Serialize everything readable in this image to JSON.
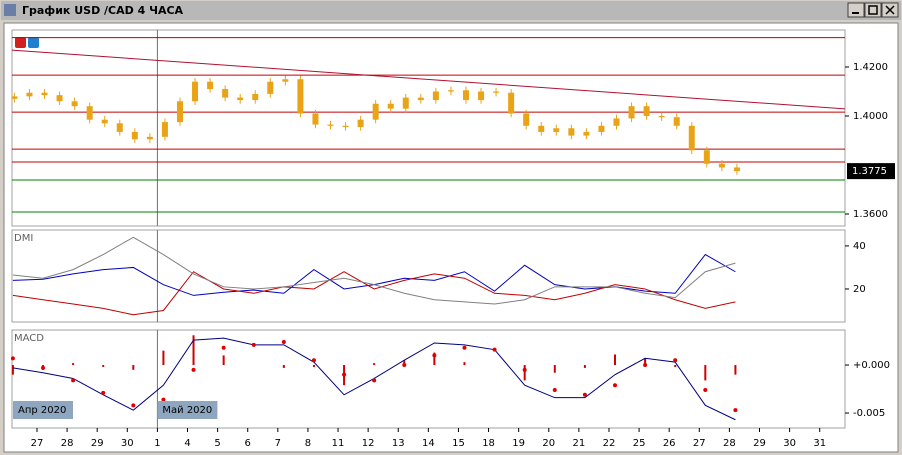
{
  "window": {
    "title": "График USD /CAD  4 ЧАСА"
  },
  "chart_data": [
    {
      "type": "candlestick",
      "xlim": [
        -0.83,
        26.84
      ],
      "ylim": [
        1.3551,
        1.4351
      ],
      "yticks": [
        {
          "value": 1.42,
          "label": "1.4200"
        },
        {
          "value": 1.4,
          "label": "1.4000"
        },
        {
          "value": 1.36,
          "label": "1.3600"
        }
      ],
      "color": "#e8a317",
      "x": [
        -0.75,
        -0.25,
        0.25,
        0.75,
        1.25,
        1.75,
        2.25,
        2.75,
        3.25,
        3.75,
        4.25,
        4.75,
        5.25,
        5.75,
        6.25,
        6.75,
        7.25,
        7.75,
        8.25,
        8.75,
        9.25,
        9.75,
        10.25,
        10.75,
        11.25,
        11.75,
        12.25,
        12.75,
        13.25,
        13.75,
        14.25,
        14.75,
        15.25,
        15.75,
        16.25,
        16.75,
        17.25,
        17.75,
        18.25,
        18.75,
        19.25,
        19.75,
        20.25,
        20.75,
        21.25,
        21.75,
        22.25,
        22.75,
        23.25
      ],
      "open": [
        1.407,
        1.408,
        1.4095,
        1.4085,
        1.406,
        1.404,
        1.3985,
        1.397,
        1.3935,
        1.3905,
        1.3915,
        1.3975,
        1.406,
        1.414,
        1.411,
        1.4075,
        1.4065,
        1.409,
        1.414,
        1.415,
        1.401,
        1.3965,
        1.396,
        1.3955,
        1.3985,
        1.405,
        1.403,
        1.4075,
        1.4065,
        1.41,
        1.4105,
        1.4065,
        1.41,
        1.4095,
        1.401,
        1.396,
        1.3935,
        1.395,
        1.392,
        1.3935,
        1.396,
        1.399,
        1.404,
        1.4,
        1.3995,
        1.396,
        1.386,
        1.3805,
        1.379
      ],
      "high": [
        1.4095,
        1.411,
        1.411,
        1.41,
        1.4075,
        1.4055,
        1.4,
        1.3985,
        1.395,
        1.393,
        1.399,
        1.4075,
        1.4155,
        1.4155,
        1.4125,
        1.409,
        1.4105,
        1.4155,
        1.4165,
        1.4165,
        1.4025,
        1.398,
        1.3975,
        1.4,
        1.4065,
        1.4065,
        1.409,
        1.409,
        1.4115,
        1.412,
        1.412,
        1.4115,
        1.4115,
        1.411,
        1.4025,
        1.3975,
        1.3965,
        1.3965,
        1.395,
        1.3975,
        1.4005,
        1.4055,
        1.4055,
        1.4015,
        1.401,
        1.3975,
        1.3875,
        1.382,
        1.3805
      ],
      "low": [
        1.4055,
        1.4065,
        1.407,
        1.4045,
        1.4025,
        1.397,
        1.3955,
        1.392,
        1.389,
        1.389,
        1.39,
        1.396,
        1.4045,
        1.4095,
        1.406,
        1.405,
        1.405,
        1.4075,
        1.4125,
        1.3995,
        1.395,
        1.3945,
        1.394,
        1.394,
        1.397,
        1.4015,
        1.4015,
        1.405,
        1.405,
        1.4085,
        1.405,
        1.405,
        1.408,
        1.3995,
        1.3945,
        1.392,
        1.392,
        1.3905,
        1.3905,
        1.392,
        1.3945,
        1.3975,
        1.3985,
        1.398,
        1.3945,
        1.3845,
        1.379,
        1.3775,
        1.376
      ],
      "close": [
        1.408,
        1.4095,
        1.4085,
        1.406,
        1.404,
        1.3985,
        1.397,
        1.3935,
        1.3905,
        1.3915,
        1.3975,
        1.406,
        1.414,
        1.411,
        1.4075,
        1.4065,
        1.409,
        1.414,
        1.415,
        1.401,
        1.3965,
        1.396,
        1.3955,
        1.3985,
        1.405,
        1.403,
        1.4075,
        1.4065,
        1.41,
        1.4105,
        1.4065,
        1.41,
        1.4095,
        1.401,
        1.396,
        1.3935,
        1.395,
        1.392,
        1.3935,
        1.396,
        1.399,
        1.404,
        1.4,
        1.3995,
        1.396,
        1.386,
        1.3805,
        1.379,
        1.3775
      ],
      "hlines": [
        {
          "value": 1.432,
          "color": "#c00000"
        },
        {
          "value": 1.4167,
          "color": "#c00000"
        },
        {
          "value": 1.4016,
          "color": "#c00000"
        },
        {
          "value": 1.3865,
          "color": "#c00000"
        },
        {
          "value": 1.3812,
          "color": "#c00000"
        },
        {
          "value": 1.3739,
          "color": "#008000"
        },
        {
          "value": 1.3608,
          "color": "#008000"
        }
      ],
      "trendline": {
        "x": [
          -0.83,
          26.84
        ],
        "values": [
          1.4269,
          1.4029
        ],
        "color": "#b01030"
      },
      "last_price": {
        "value": 1.3775,
        "label": "1.3775"
      }
    },
    {
      "type": "line",
      "title": "DMI",
      "xlim": [
        -0.83,
        26.84
      ],
      "ylim": [
        4.65,
        47.4
      ],
      "yticks": [
        40,
        20
      ],
      "x": [
        -0.8,
        0.2,
        1.2,
        2.2,
        3.2,
        4.2,
        5.2,
        6.2,
        7.2,
        8.2,
        9.2,
        10.2,
        11.2,
        12.2,
        13.2,
        14.2,
        15.2,
        16.2,
        17.2,
        18.2,
        19.2,
        20.2,
        21.2,
        22.2,
        23.2
      ],
      "series": [
        {
          "color": "#0000c0",
          "kind": "line",
          "values": [
            24,
            24.5,
            27,
            29,
            30,
            22,
            17,
            18.5,
            19.5,
            18,
            29,
            20,
            22,
            25,
            24,
            28,
            19,
            31,
            22,
            20,
            21,
            19,
            18,
            36,
            28
          ]
        },
        {
          "color": "#c00000",
          "kind": "line",
          "values": [
            17,
            15,
            13,
            11,
            8,
            10,
            28,
            20,
            18,
            21,
            20,
            28,
            20,
            24,
            27,
            25,
            18,
            17,
            15,
            18,
            22,
            20,
            15,
            11,
            14
          ]
        },
        {
          "color": "#808080",
          "kind": "line",
          "values": [
            26.5,
            25,
            29,
            36,
            44,
            36,
            27,
            21,
            20,
            21,
            23,
            25,
            22,
            18,
            15,
            14,
            13,
            15,
            21,
            21,
            21,
            18,
            16,
            28,
            32
          ]
        }
      ]
    },
    {
      "type": "line",
      "title": "MACD",
      "xlim": [
        -0.83,
        26.84
      ],
      "ylim": [
        -0.00656,
        0.00365
      ],
      "yticks": [
        {
          "value": 0,
          "label": "+0.000"
        },
        {
          "value": -0.005,
          "label": "-0.005"
        }
      ],
      "x": [
        -0.8,
        0.2,
        1.2,
        2.2,
        3.2,
        4.2,
        5.2,
        6.2,
        7.2,
        8.2,
        9.2,
        10.2,
        11.2,
        12.2,
        13.2,
        14.2,
        15.2,
        16.2,
        17.2,
        18.2,
        19.2,
        20.2,
        21.2,
        22.2,
        23.2
      ],
      "series": [
        {
          "color": "#d00000",
          "kind": "bar",
          "values": [
            -0.001,
            -0.0005,
            0.0002,
            -0.0002,
            -0.0005,
            0.0015,
            0.0031,
            0.001,
            0.0,
            -0.0003,
            -0.0002,
            -0.0021,
            0.0002,
            0.0005,
            0.0013,
            0.0003,
            0.0,
            -0.0016,
            -0.0008,
            -0.0003,
            0.0011,
            0.0007,
            -0.0002,
            -0.0016,
            -0.001
          ]
        },
        {
          "color": "#000080",
          "kind": "line",
          "values": [
            -0.0003,
            -0.0008,
            -0.0014,
            -0.0031,
            -0.0047,
            -0.0021,
            0.0026,
            0.0028,
            0.0021,
            0.0021,
            0.0003,
            -0.0031,
            -0.0014,
            0.0005,
            0.0023,
            0.0021,
            0.0016,
            -0.0021,
            -0.0034,
            -0.0034,
            -0.001,
            0.0007,
            0.0003,
            -0.0042,
            -0.0057
          ]
        },
        {
          "color": "#e00000",
          "kind": "dots",
          "values": [
            0.0007,
            -0.0003,
            -0.0016,
            -0.0029,
            -0.0042,
            -0.0036,
            -0.0005,
            0.0018,
            0.0021,
            0.0024,
            0.0005,
            -0.001,
            -0.0016,
            0.0,
            0.001,
            0.0018,
            0.0016,
            -0.0005,
            -0.0026,
            -0.0031,
            -0.0021,
            0.0,
            0.0005,
            -0.0026,
            -0.0047
          ]
        }
      ],
      "month_labels": [
        {
          "x": -0.83,
          "text": "Апр 2020"
        },
        {
          "x": 4,
          "text": "Май 2020"
        }
      ],
      "xticks": [
        {
          "value": 0,
          "label": "27"
        },
        {
          "value": 1,
          "label": "28"
        },
        {
          "value": 2,
          "label": "29"
        },
        {
          "value": 3,
          "label": "30"
        },
        {
          "value": 4,
          "label": "1"
        },
        {
          "value": 5,
          "label": "4"
        },
        {
          "value": 6,
          "label": "5"
        },
        {
          "value": 7,
          "label": "6"
        },
        {
          "value": 8,
          "label": "7"
        },
        {
          "value": 9,
          "label": "8"
        },
        {
          "value": 10,
          "label": "11"
        },
        {
          "value": 11,
          "label": "12"
        },
        {
          "value": 12,
          "label": "13"
        },
        {
          "value": 13,
          "label": "14"
        },
        {
          "value": 14,
          "label": "15"
        },
        {
          "value": 15,
          "label": "18"
        },
        {
          "value": 16,
          "label": "19"
        },
        {
          "value": 17,
          "label": "20"
        },
        {
          "value": 18,
          "label": "21"
        },
        {
          "value": 19,
          "label": "22"
        },
        {
          "value": 20,
          "label": "25"
        },
        {
          "value": 21,
          "label": "26"
        },
        {
          "value": 22,
          "label": "27"
        },
        {
          "value": 23,
          "label": "28"
        },
        {
          "value": 24,
          "label": "29"
        },
        {
          "value": 25,
          "label": "30"
        },
        {
          "value": 26,
          "label": "31"
        }
      ]
    }
  ]
}
